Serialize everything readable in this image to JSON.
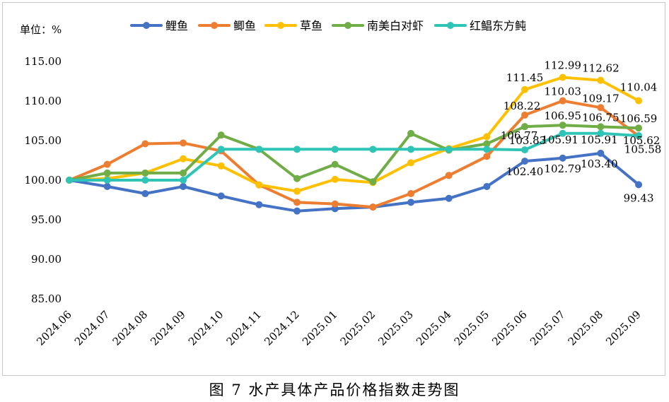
{
  "caption": "图 7  水产具体产品价格指数走势图",
  "chart_data": {
    "type": "line",
    "ylabel": "单位：%",
    "ylim": [
      85,
      115
    ],
    "yticks": [
      "85.00",
      "90.00",
      "95.00",
      "100.00",
      "105.00",
      "110.00",
      "115.00"
    ],
    "grid": false,
    "legend_position": "top",
    "categories": [
      "2024.06",
      "2024.07",
      "2024.08",
      "2024.09",
      "2024.10",
      "2024.11",
      "2024.12",
      "2025.01",
      "2025.02",
      "2025.03",
      "2025.04",
      "2025.05",
      "2025.06",
      "2025.07",
      "2025.08",
      "2025.09"
    ],
    "series": [
      {
        "name": "鲤鱼",
        "color": "#4472c4",
        "values": [
          100.0,
          99.2,
          98.3,
          99.2,
          98.0,
          96.9,
          96.1,
          96.4,
          96.6,
          97.2,
          97.7,
          99.2,
          102.4,
          102.79,
          103.4,
          99.43
        ],
        "labels": {
          "12": "102.40",
          "13": "102.79",
          "14": "103.40",
          "15": "99.43"
        }
      },
      {
        "name": "鲫鱼",
        "color": "#ed7d31",
        "values": [
          100.0,
          102.0,
          104.6,
          104.7,
          103.7,
          99.4,
          97.2,
          97.0,
          96.6,
          98.3,
          100.6,
          103.0,
          108.22,
          110.03,
          109.17,
          105.58
        ],
        "labels": {
          "12": "108.22",
          "13": "110.03",
          "14": "109.17",
          "15": "105.58"
        }
      },
      {
        "name": "草鱼",
        "color": "#ffc000",
        "values": [
          100.0,
          100.2,
          100.9,
          102.7,
          101.8,
          99.4,
          98.6,
          100.1,
          99.7,
          102.2,
          104.0,
          105.5,
          111.45,
          112.99,
          112.62,
          110.04
        ],
        "labels": {
          "12": "111.45",
          "13": "112.99",
          "14": "112.62",
          "15": "110.04"
        }
      },
      {
        "name": "南美白对虾",
        "color": "#70ad47",
        "values": [
          100.0,
          100.9,
          100.9,
          100.9,
          105.7,
          103.9,
          100.2,
          102.0,
          99.8,
          105.9,
          103.8,
          104.6,
          106.77,
          106.95,
          106.75,
          106.59
        ],
        "labels": {
          "12": "106.77",
          "13": "106.95",
          "14": "106.75",
          "15": "106.59"
        }
      },
      {
        "name": "红鲳东方鲀",
        "color": "#2ec4b6",
        "values": [
          100.0,
          100.0,
          100.0,
          100.0,
          103.9,
          103.9,
          103.9,
          103.9,
          103.9,
          103.9,
          103.9,
          103.9,
          103.83,
          105.91,
          105.91,
          105.62
        ],
        "labels": {
          "12": "103.83",
          "13": "105.91",
          "14": "105.91",
          "15": "105.62"
        }
      }
    ]
  }
}
